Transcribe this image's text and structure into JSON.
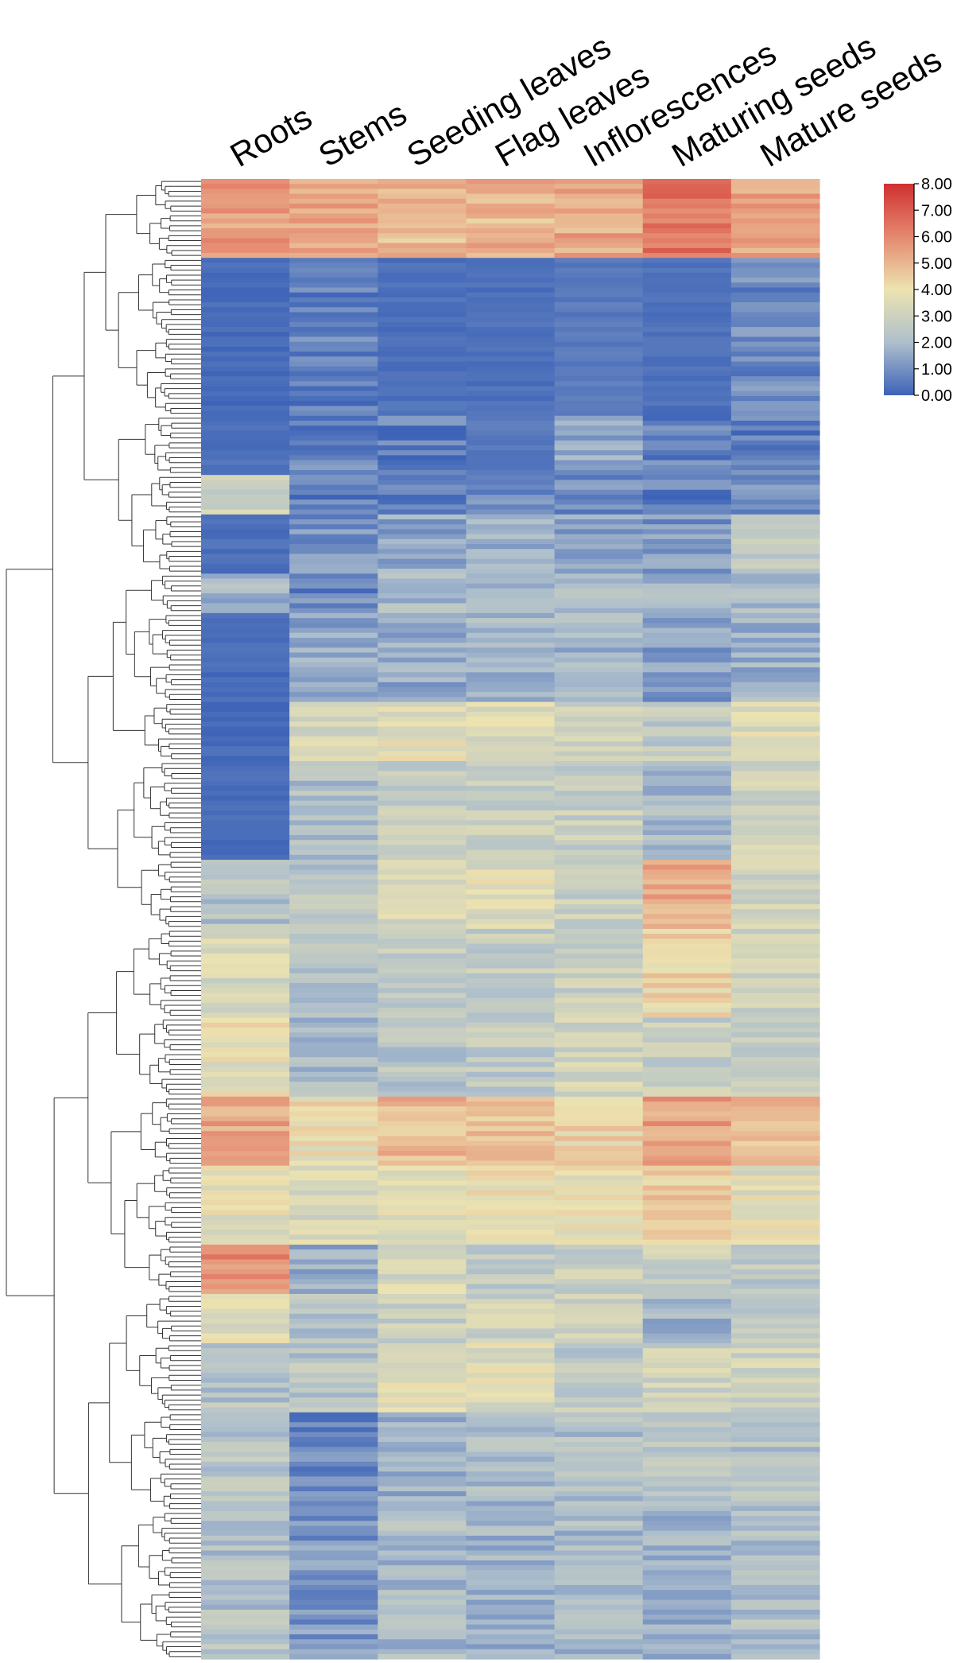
{
  "chart_data": {
    "type": "heatmap",
    "title": "",
    "columns": [
      "Roots",
      "Stems",
      "Seeding leaves",
      "Flag leaves",
      "Inflorescences",
      "Maturing seeds",
      "Mature seeds"
    ],
    "colorbar": {
      "ticks": [
        "0.00",
        "1.00",
        "2.00",
        "3.00",
        "4.00",
        "5.00",
        "6.00",
        "7.00",
        "8.00"
      ],
      "min": 0,
      "max": 8,
      "colors": [
        "#3d63b8",
        "#aebfcc",
        "#ece3b0",
        "#e58870",
        "#d03030"
      ],
      "position": "right"
    },
    "dendrogram": "rows",
    "row_blocks": [
      {
        "rows": 16,
        "values": [
          5.6,
          5.2,
          5.0,
          5.0,
          5.3,
          6.4,
          5.4
        ]
      },
      {
        "rows": 32,
        "values": [
          0.2,
          0.6,
          0.3,
          0.3,
          0.5,
          0.3,
          0.8
        ]
      },
      {
        "rows": 12,
        "values": [
          0.3,
          0.7,
          0.6,
          0.5,
          1.5,
          0.7,
          0.6
        ]
      },
      {
        "rows": 8,
        "values": [
          3.0,
          0.6,
          0.6,
          0.7,
          0.9,
          0.6,
          0.8
        ]
      },
      {
        "rows": 12,
        "values": [
          0.3,
          1.1,
          1.5,
          1.6,
          1.5,
          1.2,
          2.7
        ]
      },
      {
        "rows": 8,
        "values": [
          1.9,
          0.8,
          1.9,
          2.0,
          1.8,
          1.7,
          1.9
        ]
      },
      {
        "rows": 18,
        "values": [
          0.2,
          1.5,
          1.6,
          1.9,
          1.8,
          1.3,
          1.8
        ]
      },
      {
        "rows": 12,
        "values": [
          0.2,
          3.4,
          3.7,
          3.5,
          3.2,
          2.6,
          3.6
        ]
      },
      {
        "rows": 20,
        "values": [
          0.2,
          2.2,
          2.6,
          2.9,
          2.8,
          1.9,
          3.0
        ]
      },
      {
        "rows": 14,
        "values": [
          2.3,
          2.4,
          3.4,
          3.6,
          2.9,
          5.2,
          3.1
        ]
      },
      {
        "rows": 18,
        "values": [
          3.3,
          2.4,
          2.7,
          2.7,
          2.8,
          4.2,
          2.9
        ]
      },
      {
        "rows": 16,
        "values": [
          3.8,
          2.1,
          2.4,
          2.6,
          3.1,
          2.8,
          2.7
        ]
      },
      {
        "rows": 14,
        "values": [
          5.3,
          4.0,
          4.9,
          4.8,
          4.2,
          5.4,
          4.7
        ]
      },
      {
        "rows": 16,
        "values": [
          3.8,
          3.4,
          3.6,
          3.8,
          3.9,
          4.5,
          3.6
        ]
      },
      {
        "rows": 10,
        "values": [
          5.8,
          1.6,
          3.3,
          2.6,
          2.9,
          2.9,
          2.6
        ]
      },
      {
        "rows": 10,
        "values": [
          3.5,
          2.3,
          2.8,
          3.0,
          3.0,
          1.8,
          2.6
        ]
      },
      {
        "rows": 14,
        "values": [
          2.3,
          2.4,
          3.5,
          3.5,
          2.6,
          3.0,
          3.1
        ]
      },
      {
        "rows": 20,
        "values": [
          2.4,
          0.8,
          1.7,
          2.0,
          2.2,
          2.6,
          2.2
        ]
      },
      {
        "rows": 30,
        "values": [
          2.2,
          1.1,
          2.0,
          1.8,
          2.0,
          1.8,
          2.1
        ]
      }
    ]
  }
}
